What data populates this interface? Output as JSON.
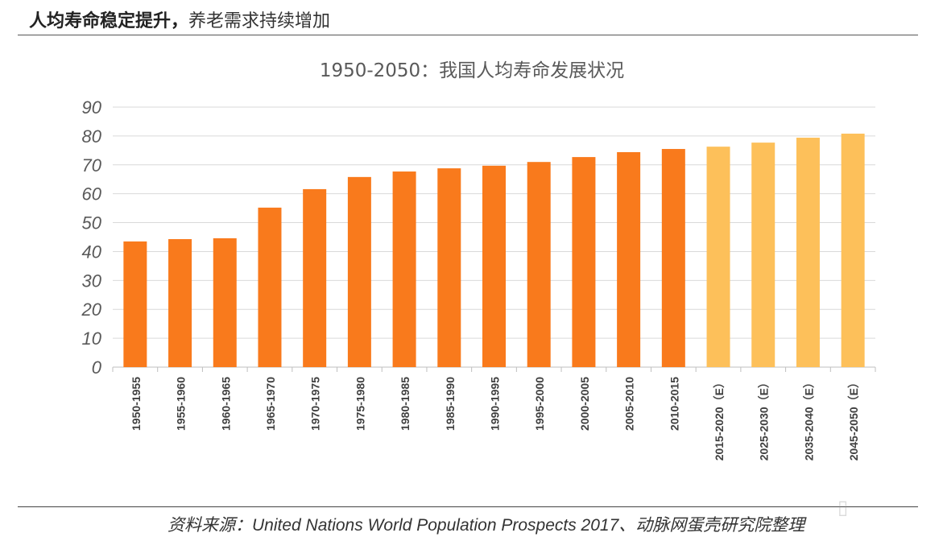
{
  "header": {
    "bold": "人均寿命稳定提升，",
    "rest": "养老需求持续增加"
  },
  "source": "资料来源：United Nations World Population Prospects 2017、动脉网蛋壳研究院整理",
  "watermark": "动脉网",
  "colors": {
    "actual": "#F97A1C",
    "estimate": "#FDC05A",
    "grid": "#D9D9D9",
    "axis_text": "#595959"
  },
  "chart_data": {
    "type": "bar",
    "title": "1950-2050：我国人均寿命发展状况",
    "xlabel": "",
    "ylabel": "",
    "ylim": [
      0,
      90
    ],
    "yticks": [
      0,
      10,
      20,
      30,
      40,
      50,
      60,
      70,
      80,
      90
    ],
    "grid": true,
    "categories": [
      "1950-1955",
      "1955-1960",
      "1960-1965",
      "1965-1970",
      "1970-1975",
      "1975-1980",
      "1980-1985",
      "1985-1990",
      "1990-1995",
      "1995-2000",
      "2000-2005",
      "2005-2010",
      "2010-2015",
      "2015-2020（E）",
      "2025-2030（E）",
      "2035-2040（E）",
      "2045-2050（E）"
    ],
    "values": [
      43.5,
      44.3,
      44.6,
      55.2,
      61.6,
      65.8,
      67.7,
      68.8,
      69.7,
      71.0,
      72.7,
      74.4,
      75.5,
      76.3,
      77.7,
      79.4,
      80.8
    ],
    "estimated": [
      false,
      false,
      false,
      false,
      false,
      false,
      false,
      false,
      false,
      false,
      false,
      false,
      false,
      true,
      true,
      true,
      true
    ]
  }
}
